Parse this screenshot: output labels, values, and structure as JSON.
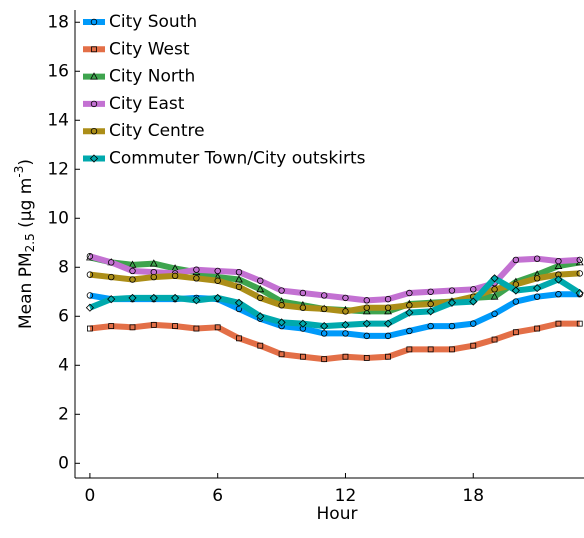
{
  "chart_data": {
    "type": "line",
    "xlabel": "Hour",
    "ylabel": [
      "Mean PM",
      "2.5",
      " (μg m",
      "-3",
      ")"
    ],
    "x": [
      0,
      1,
      2,
      3,
      4,
      5,
      6,
      7,
      8,
      9,
      10,
      11,
      12,
      13,
      14,
      15,
      16,
      17,
      18,
      19,
      20,
      21,
      22,
      23
    ],
    "xlim": [
      -0.7,
      23.2
    ],
    "xticks": [
      0,
      6,
      12,
      18
    ],
    "ylim": [
      -0.6,
      18.5
    ],
    "yticks": [
      0,
      2,
      4,
      6,
      8,
      10,
      12,
      14,
      16,
      18
    ],
    "grid": false,
    "legend": "top-left",
    "series": [
      {
        "name": "City South",
        "color": "#009afa",
        "marker": "circle",
        "values": [
          6.85,
          6.7,
          6.7,
          6.7,
          6.7,
          6.75,
          6.7,
          6.3,
          5.9,
          5.6,
          5.5,
          5.3,
          5.3,
          5.2,
          5.2,
          5.4,
          5.6,
          5.6,
          5.7,
          6.1,
          6.6,
          6.8,
          6.9,
          6.9
        ]
      },
      {
        "name": "City West",
        "color": "#e36f47",
        "marker": "square",
        "values": [
          5.5,
          5.6,
          5.55,
          5.65,
          5.6,
          5.5,
          5.55,
          5.1,
          4.8,
          4.45,
          4.35,
          4.25,
          4.35,
          4.3,
          4.35,
          4.65,
          4.65,
          4.65,
          4.8,
          5.05,
          5.35,
          5.5,
          5.7,
          5.7
        ]
      },
      {
        "name": "City North",
        "color": "#3ea44e",
        "marker": "triangle",
        "values": [
          8.4,
          8.2,
          8.1,
          8.15,
          7.95,
          7.8,
          7.6,
          7.5,
          7.1,
          6.6,
          6.45,
          6.3,
          6.25,
          6.2,
          6.2,
          6.5,
          6.55,
          6.6,
          6.75,
          6.8,
          7.4,
          7.7,
          8.05,
          8.2
        ]
      },
      {
        "name": "City East",
        "color": "#c371d2",
        "marker": "circle",
        "values": [
          8.45,
          8.2,
          7.85,
          7.8,
          7.75,
          7.9,
          7.85,
          7.8,
          7.45,
          7.05,
          6.95,
          6.85,
          6.75,
          6.65,
          6.7,
          6.95,
          7.0,
          7.05,
          7.1,
          7.35,
          8.3,
          8.35,
          8.25,
          8.3
        ]
      },
      {
        "name": "City Centre",
        "color": "#ac8e18",
        "marker": "circle",
        "values": [
          7.7,
          7.6,
          7.5,
          7.6,
          7.65,
          7.55,
          7.45,
          7.2,
          6.75,
          6.45,
          6.35,
          6.3,
          6.2,
          6.35,
          6.35,
          6.45,
          6.5,
          6.6,
          6.8,
          7.1,
          7.3,
          7.55,
          7.7,
          7.75
        ]
      },
      {
        "name": "Commuter Town/City outskirts",
        "color": "#00a9ad",
        "marker": "diamond",
        "values": [
          6.35,
          6.7,
          6.75,
          6.75,
          6.75,
          6.65,
          6.75,
          6.55,
          6.0,
          5.75,
          5.7,
          5.6,
          5.65,
          5.7,
          5.7,
          6.15,
          6.2,
          6.55,
          6.6,
          7.55,
          7.05,
          7.15,
          7.5,
          6.95
        ]
      }
    ]
  }
}
